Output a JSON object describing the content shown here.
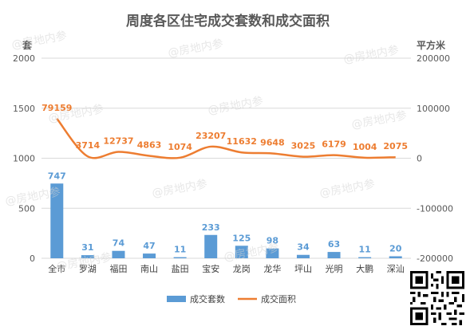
{
  "watermark": "@房地内参",
  "chart_data": {
    "type": "bar+line",
    "title": "周度各区住宅成交套数和成交面积",
    "ylabel_left": "套",
    "ylabel_right": "平方米",
    "categories": [
      "全市",
      "罗湖",
      "福田",
      "南山",
      "盐田",
      "宝安",
      "龙岗",
      "龙华",
      "坪山",
      "光明",
      "大鹏",
      "深汕"
    ],
    "ylim_left": [
      0,
      2000
    ],
    "yticks_left": [
      0,
      500,
      1000,
      1500,
      2000
    ],
    "ylim_right": [
      -200000,
      200000
    ],
    "yticks_right": [
      -200000,
      -100000,
      0,
      100000,
      200000
    ],
    "grid": true,
    "legend_position": "bottom",
    "series": [
      {
        "name": "成交套数",
        "type": "bar",
        "axis": "left",
        "color": "#5b9bd5",
        "values": [
          747,
          31,
          74,
          47,
          11,
          233,
          125,
          98,
          34,
          63,
          11,
          20
        ]
      },
      {
        "name": "成交面积",
        "type": "line",
        "axis": "right",
        "color": "#ed7d31",
        "values": [
          79159,
          3714,
          12737,
          4863,
          1074,
          23207,
          11632,
          9648,
          3025,
          6179,
          1004,
          2075
        ]
      }
    ]
  }
}
